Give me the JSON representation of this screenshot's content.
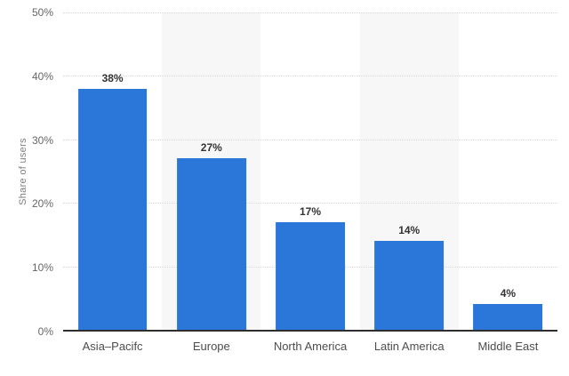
{
  "chart_data": {
    "type": "bar",
    "title": "",
    "xlabel": "",
    "ylabel": "Share of users",
    "ylim": [
      0,
      50
    ],
    "yticks": [
      0,
      10,
      20,
      30,
      40,
      50
    ],
    "ytick_labels_top_to_bottom": [
      "50%",
      "40%",
      "30%",
      "20%",
      "10%",
      "0%"
    ],
    "categories": [
      "Asia–Pacifc",
      "Europe",
      "North America",
      "Latin America",
      "Middle East"
    ],
    "values": [
      38,
      27,
      17,
      14,
      4
    ],
    "value_labels": [
      "38%",
      "27%",
      "17%",
      "14%",
      "4%"
    ],
    "grid": "horizontal-dotted",
    "legend": "none",
    "plot_background": "alternating category bands",
    "colors": {
      "bar": "#2a76d9",
      "band_alt": "#f7f7f7",
      "gridline": "#d8d8d8",
      "axis_line": "#2e2e2e",
      "value_label": "#333333",
      "category_label": "#4d4d4d",
      "tick_label": "#666666",
      "axis_title": "#7d7d7d",
      "background": "#ffffff"
    }
  }
}
